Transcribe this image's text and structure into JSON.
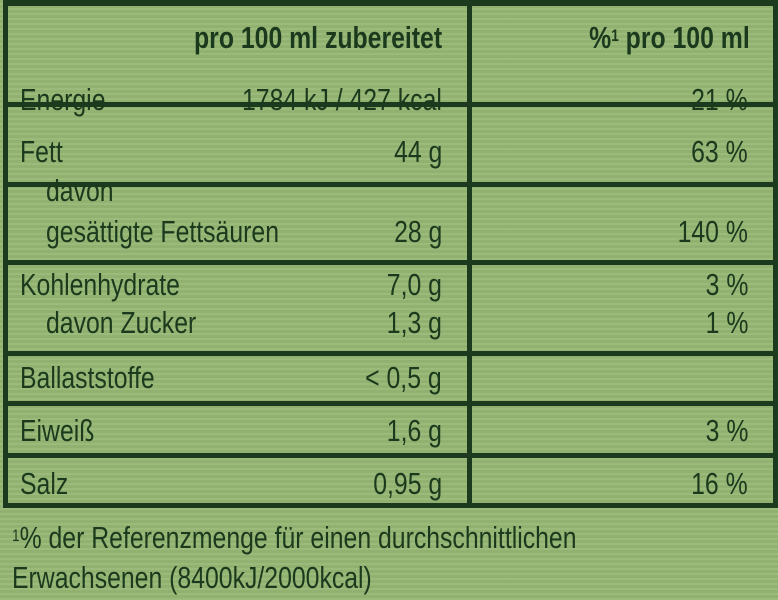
{
  "header": {
    "col1": "pro 100 ml zubereitet",
    "col2_sup": "1",
    "col2_pre": "%",
    "col2": " pro 100 ml"
  },
  "rows": [
    {
      "name": "Energie",
      "value": "1784 kJ / 427 kcal",
      "percent": "21 %"
    },
    {
      "name": "Fett",
      "value": "44 g",
      "percent": "63 %"
    },
    {
      "name": "davon",
      "value": "",
      "percent": ""
    },
    {
      "name": "gesättigte Fettsäuren",
      "value": "28 g",
      "percent": "140 %"
    },
    {
      "name": "Kohlenhydrate",
      "value": "7,0 g",
      "percent": "3 %"
    },
    {
      "name": "davon Zucker",
      "value": "1,3 g",
      "percent": "1 %"
    },
    {
      "name": "Ballaststoffe",
      "value": "< 0,5 g",
      "percent": ""
    },
    {
      "name": "Eiweiß",
      "value": "1,6 g",
      "percent": "3 %"
    },
    {
      "name": "Salz",
      "value": "0,95 g",
      "percent": "16 %"
    }
  ],
  "footnote": {
    "sup": "1",
    "line1": "% der Referenzmenge für einen durchschnittlichen",
    "line2": "Erwachsenen (8400kJ/2000kcal)"
  },
  "colors": {
    "background": "#96b774",
    "ink": "#1b3a1d"
  }
}
